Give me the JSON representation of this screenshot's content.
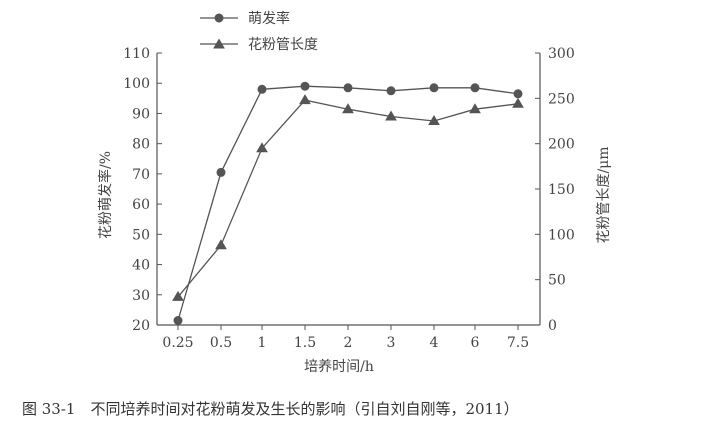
{
  "chart_data": {
    "type": "line",
    "categories": [
      "0.25",
      "0.5",
      "1",
      "1.5",
      "2",
      "3",
      "4",
      "6",
      "7.5"
    ],
    "series": [
      {
        "name": "萌发率",
        "axis": "left",
        "marker": "circle",
        "values": [
          21.5,
          70.5,
          98,
          99,
          98.5,
          97.5,
          98.5,
          98.5,
          96.5
        ]
      },
      {
        "name": "花粉管长度",
        "axis": "right",
        "marker": "triangle",
        "values": [
          31,
          88,
          195,
          248,
          238,
          230,
          225,
          238,
          244
        ]
      }
    ],
    "xlabel": "培养时间/h",
    "ylabel_left": "花粉萌发率/%",
    "ylabel_right": "花粉管长度/μm",
    "ylim_left": [
      20,
      110
    ],
    "ylim_right": [
      0,
      300
    ],
    "yticks_left": [
      20,
      30,
      40,
      50,
      60,
      70,
      80,
      90,
      100,
      110
    ],
    "yticks_right": [
      0,
      50,
      100,
      150,
      200,
      250,
      300
    ],
    "grid": false,
    "legend_position": "top-left"
  },
  "caption": "图 33-1　不同培养时间对花粉萌发及生长的影响（引自刘自刚等，2011）"
}
